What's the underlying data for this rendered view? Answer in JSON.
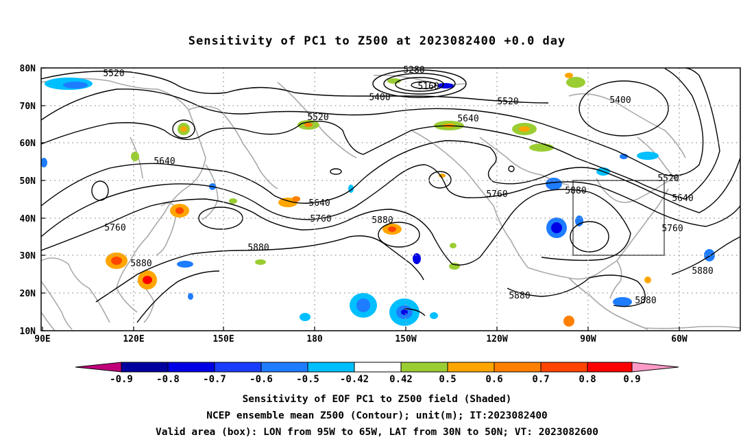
{
  "title": "Sensitivity of PC1 to Z500 at 2023082400 +0.0 day",
  "map": {
    "lat_labels": [
      "80N",
      "70N",
      "60N",
      "50N",
      "40N",
      "30N",
      "20N",
      "10N"
    ],
    "lon_labels": [
      "90E",
      "120E",
      "150E",
      "180",
      "150W",
      "120W",
      "90W",
      "60W"
    ],
    "contour_labels": [
      "5160",
      "5280",
      "5400",
      "5400",
      "5520",
      "5520",
      "5520",
      "5520",
      "5640",
      "5640",
      "5640",
      "5640",
      "5760",
      "5760",
      "5760",
      "5760",
      "5880",
      "5880",
      "5880",
      "5880",
      "5880",
      "5880",
      "5880"
    ],
    "valid_box": {
      "lon_from": "95W",
      "lon_to": "65W",
      "lat_from": "30N",
      "lat_to": "50N"
    }
  },
  "colorbar": {
    "labels": [
      "-0.9",
      "-0.8",
      "-0.7",
      "-0.6",
      "-0.5",
      "-0.42",
      "0.42",
      "0.5",
      "0.6",
      "0.7",
      "0.8",
      "0.9"
    ],
    "colors": [
      "#c0007a",
      "#0000a0",
      "#0000e6",
      "#1a3cff",
      "#1e7cff",
      "#00bfff",
      "#ffffff",
      "#9acd32",
      "#ffa500",
      "#ff7f00",
      "#ff4500",
      "#ff0000",
      "#ff9ac8"
    ]
  },
  "caption": {
    "line1": "Sensitivity of EOF PC1 to Z500 field (Shaded)",
    "line2": "NCEP ensemble mean Z500 (Contour); unit(m); IT:2023082400",
    "line3": "Valid area (box): LON from 95W to 65W, LAT from 30N to 50N; VT: 2023082600"
  }
}
